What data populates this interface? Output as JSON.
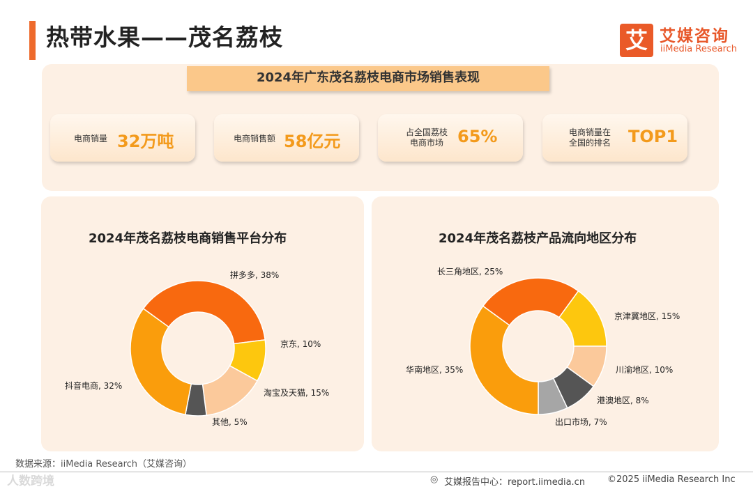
{
  "header": {
    "title": "热带水果——茂名荔枝",
    "logo_mark": "艾",
    "logo_cn": "艾媒咨询",
    "logo_en": "iiMedia Research"
  },
  "summary": {
    "banner": "2024年广东茂名荔枝电商市场销售表现",
    "kpis": [
      {
        "label": "电商销量",
        "value": "32万吨"
      },
      {
        "label": "电商销售额",
        "value": "58亿元"
      },
      {
        "label_line1": "占全国荔枝",
        "label_line2": "电商市场",
        "value": "65%"
      },
      {
        "label_line1": "电商销量在",
        "label_line2": "全国的排名",
        "value": "TOP1"
      }
    ]
  },
  "chart_data": [
    {
      "type": "pie",
      "title": "2024年茂名荔枝电商销售平台分布",
      "slices": [
        {
          "label": "拼多多, 38%",
          "value": 38,
          "color": "#f8690f"
        },
        {
          "label": "京东, 10%",
          "value": 10,
          "color": "#fdc70e"
        },
        {
          "label": "淘宝及天猫, 15%",
          "value": 15,
          "color": "#fbc99b"
        },
        {
          "label": "其他, 5%",
          "value": 5,
          "color": "#555555"
        },
        {
          "label": "抖音电商, 32%",
          "value": 32,
          "color": "#fa9d0c"
        }
      ]
    },
    {
      "type": "pie",
      "title": "2024年茂名荔枝产品流向地区分布",
      "slices": [
        {
          "label": "长三角地区, 25%",
          "value": 25,
          "color": "#f8690f"
        },
        {
          "label": "京津冀地区, 15%",
          "value": 15,
          "color": "#fdc70e"
        },
        {
          "label": "川渝地区, 10%",
          "value": 10,
          "color": "#fbc99b"
        },
        {
          "label": "港澳地区, 8%",
          "value": 8,
          "color": "#555555"
        },
        {
          "label": "出口市场, 7%",
          "value": 7,
          "color": "#a6a6a6"
        },
        {
          "label": "华南地区, 35%",
          "value": 35,
          "color": "#fa9d0c"
        }
      ]
    }
  ],
  "footer": {
    "source": "数据来源：iiMedia Research（艾媒咨询）",
    "watermark": "人数跨境",
    "site": "艾媒报告中心：report.iimedia.cn",
    "copyright": "©2025  iiMedia Research  Inc"
  }
}
